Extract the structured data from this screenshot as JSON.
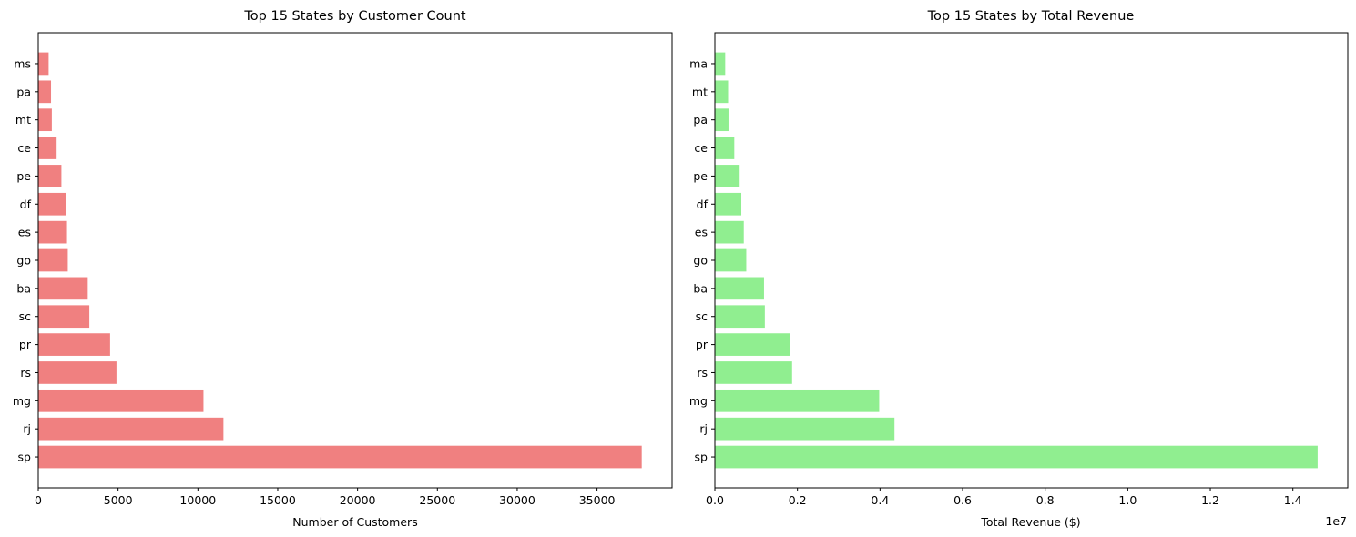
{
  "chart_data": [
    {
      "type": "bar",
      "orientation": "horizontal",
      "title": "Top 15 States by Customer Count",
      "xlabel": "Number of Customers",
      "ylabel": "",
      "categories": [
        "sp",
        "rj",
        "mg",
        "rs",
        "pr",
        "sc",
        "ba",
        "go",
        "es",
        "df",
        "pe",
        "ce",
        "mt",
        "pa",
        "ms"
      ],
      "values": [
        37800,
        11600,
        10350,
        4900,
        4500,
        3200,
        3100,
        1850,
        1800,
        1750,
        1450,
        1150,
        850,
        800,
        650
      ],
      "xlim": [
        0,
        39700
      ],
      "xticks": [
        "0",
        "5000",
        "10000",
        "15000",
        "20000",
        "25000",
        "30000",
        "35000"
      ],
      "xtick_values": [
        0,
        5000,
        10000,
        15000,
        20000,
        25000,
        30000,
        35000
      ],
      "grid": false,
      "color": "#f08080"
    },
    {
      "type": "bar",
      "orientation": "horizontal",
      "title": "Top 15 States by Total Revenue",
      "xlabel": "Total Revenue ($)",
      "ylabel": "",
      "offset_text": "1e7",
      "categories": [
        "sp",
        "rj",
        "mg",
        "rs",
        "pr",
        "sc",
        "ba",
        "go",
        "es",
        "df",
        "pe",
        "ce",
        "pa",
        "mt",
        "ma"
      ],
      "values": [
        14600000,
        4350000,
        3980000,
        1870000,
        1820000,
        1210000,
        1190000,
        760000,
        700000,
        640000,
        600000,
        470000,
        330000,
        320000,
        250000
      ],
      "xlim": [
        0,
        15330000
      ],
      "xticks": [
        "0.0",
        "0.2",
        "0.4",
        "0.6",
        "0.8",
        "1.0",
        "1.2",
        "1.4"
      ],
      "xtick_values": [
        0,
        2000000,
        4000000,
        6000000,
        8000000,
        10000000,
        12000000,
        14000000
      ],
      "grid": false,
      "color": "#90ee90"
    }
  ]
}
